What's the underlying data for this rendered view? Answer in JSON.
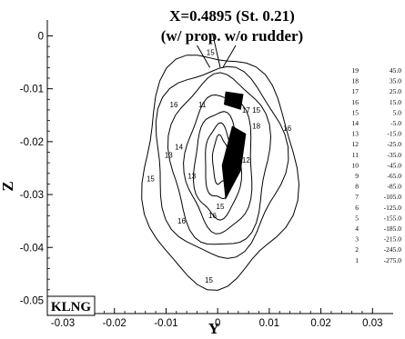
{
  "chart_data": {
    "type": "contour",
    "title": [
      "X=0.4895 (St. 0.21)",
      "(w/ prop. w/o rudder)"
    ],
    "xlabel": "Y",
    "ylabel": "Z",
    "xlim": [
      -0.033,
      0.034
    ],
    "ylim": [
      -0.0525,
      0.003
    ],
    "xticks": [
      -0.03,
      -0.02,
      -0.01,
      0,
      0.01,
      0.02,
      0.03
    ],
    "xtick_labels": [
      "-0.03",
      "-0.02",
      "-0.01",
      "0",
      "0.01",
      "0.02",
      "0.03"
    ],
    "yticks": [
      0,
      -0.01,
      -0.02,
      -0.03,
      -0.04,
      -0.05
    ],
    "ytick_labels": [
      "0",
      "-0.01",
      "-0.02",
      "-0.03",
      "-0.04",
      "-0.05"
    ],
    "legend_placement": "right",
    "legend": [
      {
        "level": "19",
        "value": "45.0"
      },
      {
        "level": "18",
        "value": "35.0"
      },
      {
        "level": "17",
        "value": "25.0"
      },
      {
        "level": "16",
        "value": "15.0"
      },
      {
        "level": "15",
        "value": "5.0"
      },
      {
        "level": "14",
        "value": "-5.0"
      },
      {
        "level": "13",
        "value": "-15.0"
      },
      {
        "level": "12",
        "value": "-25.0"
      },
      {
        "level": "11",
        "value": "-35.0"
      },
      {
        "level": "10",
        "value": "-45.0"
      },
      {
        "level": "9",
        "value": "-65.0"
      },
      {
        "level": "8",
        "value": "-85.0"
      },
      {
        "level": "7",
        "value": "-105.0"
      },
      {
        "level": "6",
        "value": "-125.0"
      },
      {
        "level": "5",
        "value": "-155.0"
      },
      {
        "level": "4",
        "value": "-185.0"
      },
      {
        "level": "3",
        "value": "-215.0"
      },
      {
        "level": "2",
        "value": "-245.0"
      },
      {
        "level": "1",
        "value": "-275.0"
      }
    ],
    "contours": [
      {
        "level": 15,
        "cx": 0.0,
        "cz": -0.025,
        "rx": 0.0148,
        "rz": 0.0218
      },
      {
        "level": 16,
        "cx": 0.0002,
        "cz": -0.0235,
        "rx": 0.0125,
        "rz": 0.0178
      },
      {
        "level": 15,
        "cx": 0.0005,
        "cz": -0.0235,
        "rx": 0.0095,
        "rz": 0.0162
      },
      {
        "level": 13,
        "cx": 0.0005,
        "cz": -0.024,
        "rx": 0.0065,
        "rz": 0.013
      },
      {
        "level": 12,
        "cx": 0.0,
        "cz": -0.0245,
        "rx": 0.0045,
        "rz": 0.01
      },
      {
        "level": 11,
        "cx": 0.0003,
        "cz": -0.024,
        "rx": 0.0028,
        "rz": 0.007
      },
      {
        "level": 9,
        "cx": 0.0005,
        "cz": -0.0235,
        "rx": 0.0015,
        "rz": 0.0045
      }
    ],
    "contour_labels": [
      {
        "text": "15",
        "x": -0.0014,
        "z": -0.0036
      },
      {
        "text": "16",
        "x": -0.0085,
        "z": -0.0135
      },
      {
        "text": "15",
        "x": 0.0075,
        "z": -0.0145
      },
      {
        "text": "16",
        "x": 0.0135,
        "z": -0.018
      },
      {
        "text": "14",
        "x": -0.0075,
        "z": -0.0215
      },
      {
        "text": "15",
        "x": -0.013,
        "z": -0.0275
      },
      {
        "text": "13",
        "x": -0.0095,
        "z": -0.023
      },
      {
        "text": "13",
        "x": 0.0035,
        "z": -0.0205
      },
      {
        "text": "11",
        "x": -0.003,
        "z": -0.0135
      },
      {
        "text": "13",
        "x": -0.005,
        "z": -0.027
      },
      {
        "text": "12",
        "x": 0.0055,
        "z": -0.024
      },
      {
        "text": "16",
        "x": -0.007,
        "z": -0.0355
      },
      {
        "text": "15",
        "x": 0.0005,
        "z": -0.0327
      },
      {
        "text": "17",
        "x": 0.0055,
        "z": -0.0145
      },
      {
        "text": "18",
        "x": 0.0075,
        "z": -0.0175
      },
      {
        "text": "16",
        "x": -0.001,
        "z": -0.0345
      },
      {
        "text": "15",
        "x": -0.0017,
        "z": -0.0467
      }
    ],
    "annotation": "KLNG"
  }
}
